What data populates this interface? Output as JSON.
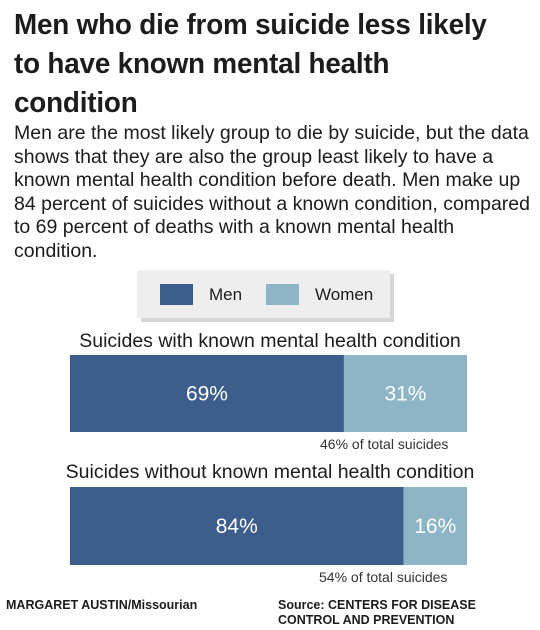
{
  "title": "Men who die from suicide less likely to have known mental health condition",
  "subtitle": "Men are the most likely group to die by suicide, but the data shows that they are also the group least likely to have a known mental health condition before death. Men make up 84 percent of suicides without a known condition, compared to 69 percent of deaths with a known mental health condition.",
  "legend": [
    {
      "label": "Men",
      "color": "#3d5e8c"
    },
    {
      "label": "Women",
      "color": "#8db5c5"
    }
  ],
  "chart_data": [
    {
      "type": "bar",
      "title": "Suicides with known mental health condition",
      "series": [
        {
          "name": "Men",
          "value": 69,
          "label": "69%"
        },
        {
          "name": "Women",
          "value": 31,
          "label": "31%"
        }
      ],
      "note": "46% of total suicides"
    },
    {
      "type": "bar",
      "title": "Suicides without known mental health condition",
      "series": [
        {
          "name": "Men",
          "value": 84,
          "label": "84%"
        },
        {
          "name": "Women",
          "value": 16,
          "label": "16%"
        }
      ],
      "note": "54% of total suicides"
    }
  ],
  "credit": "MARGARET AUSTIN/Missourian",
  "source": "Source: CENTERS FOR DISEASE CONTROL AND PREVENTION"
}
